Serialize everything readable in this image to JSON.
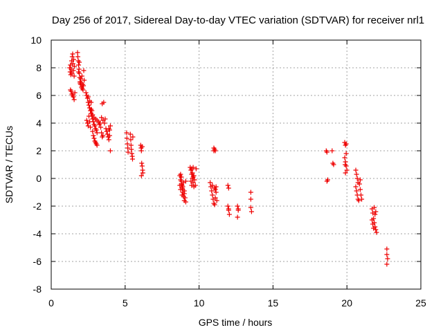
{
  "chart_data": {
    "type": "scatter",
    "title": "Day 256 of 2017, Sidereal Day-to-day VTEC variation (SDTVAR) for receiver nrl1",
    "xlabel": "GPS time / hours",
    "ylabel": "SDTVAR / TECUs",
    "xlim": [
      0,
      25
    ],
    "ylim": [
      -8,
      10
    ],
    "xticks": [
      0,
      5,
      10,
      15,
      20,
      25
    ],
    "yticks": [
      -8,
      -6,
      -4,
      -2,
      0,
      2,
      4,
      6,
      8,
      10
    ],
    "grid": true,
    "marker": "plus",
    "color": "#ee0000",
    "series": [
      {
        "name": "nrl1",
        "points": [
          [
            1.25,
            8.0
          ],
          [
            1.28,
            7.7
          ],
          [
            1.3,
            8.2
          ],
          [
            1.32,
            7.5
          ],
          [
            1.35,
            7.9
          ],
          [
            1.38,
            8.5
          ],
          [
            1.4,
            7.6
          ],
          [
            1.42,
            8.8
          ],
          [
            1.45,
            9.0
          ],
          [
            1.47,
            8.3
          ],
          [
            1.5,
            7.8
          ],
          [
            1.52,
            8.6
          ],
          [
            1.55,
            7.4
          ],
          [
            1.57,
            8.1
          ],
          [
            1.3,
            6.4
          ],
          [
            1.35,
            6.3
          ],
          [
            1.4,
            6.1
          ],
          [
            1.45,
            6.0
          ],
          [
            1.5,
            5.9
          ],
          [
            1.55,
            5.7
          ],
          [
            1.6,
            6.2
          ],
          [
            1.78,
            9.1
          ],
          [
            1.8,
            8.8
          ],
          [
            1.83,
            8.5
          ],
          [
            1.85,
            8.2
          ],
          [
            1.88,
            7.9
          ],
          [
            1.9,
            7.6
          ],
          [
            1.93,
            7.3
          ],
          [
            1.95,
            7.0
          ],
          [
            1.98,
            6.8
          ],
          [
            2.0,
            7.2
          ],
          [
            2.03,
            6.9
          ],
          [
            2.05,
            6.6
          ],
          [
            2.08,
            7.4
          ],
          [
            2.1,
            6.5
          ],
          [
            2.13,
            6.8
          ],
          [
            2.15,
            6.4
          ],
          [
            2.18,
            6.7
          ],
          [
            2.2,
            7.8
          ],
          [
            2.23,
            7.1
          ],
          [
            1.85,
            7.7
          ],
          [
            1.9,
            8.4
          ],
          [
            1.95,
            6.9
          ],
          [
            2.35,
            6.2
          ],
          [
            2.4,
            6.0
          ],
          [
            2.45,
            5.8
          ],
          [
            2.5,
            5.5
          ],
          [
            2.55,
            5.3
          ],
          [
            2.6,
            5.1
          ],
          [
            2.65,
            4.9
          ],
          [
            2.7,
            4.7
          ],
          [
            2.75,
            4.5
          ],
          [
            2.8,
            4.3
          ],
          [
            2.85,
            4.1
          ],
          [
            2.9,
            3.9
          ],
          [
            2.95,
            3.8
          ],
          [
            3.0,
            3.6
          ],
          [
            3.05,
            3.5
          ],
          [
            3.1,
            3.3
          ],
          [
            2.4,
            4.2
          ],
          [
            2.45,
            4.0
          ],
          [
            2.5,
            3.8
          ],
          [
            2.55,
            4.5
          ],
          [
            2.6,
            4.1
          ],
          [
            2.65,
            3.7
          ],
          [
            2.7,
            5.5
          ],
          [
            2.75,
            4.9
          ],
          [
            2.8,
            3.4
          ],
          [
            2.85,
            3.1
          ],
          [
            2.9,
            2.9
          ],
          [
            2.95,
            2.7
          ],
          [
            3.0,
            2.6
          ],
          [
            3.05,
            2.5
          ],
          [
            3.1,
            2.4
          ],
          [
            2.5,
            5.9
          ],
          [
            2.6,
            5.6
          ],
          [
            2.7,
            5.0
          ],
          [
            2.8,
            4.6
          ],
          [
            2.9,
            4.4
          ],
          [
            3.0,
            4.3
          ],
          [
            3.1,
            4.2
          ],
          [
            3.2,
            4.1
          ],
          [
            3.25,
            3.9
          ],
          [
            3.3,
            4.0
          ],
          [
            3.35,
            3.7
          ],
          [
            3.4,
            3.3
          ],
          [
            3.45,
            3.0
          ],
          [
            3.5,
            3.1
          ],
          [
            3.4,
            4.4
          ],
          [
            3.5,
            4.2
          ],
          [
            3.55,
            5.5
          ],
          [
            3.45,
            5.4
          ],
          [
            3.6,
            4.0
          ],
          [
            3.65,
            4.3
          ],
          [
            3.7,
            3.6
          ],
          [
            3.75,
            3.4
          ],
          [
            3.8,
            3.2
          ],
          [
            3.85,
            3.0
          ],
          [
            3.9,
            2.8
          ],
          [
            3.95,
            3.5
          ],
          [
            4.0,
            3.8
          ],
          [
            3.9,
            3.6
          ],
          [
            3.95,
            3.1
          ],
          [
            4.0,
            2.0
          ],
          [
            5.1,
            3.3
          ],
          [
            5.12,
            2.9
          ],
          [
            5.15,
            2.5
          ],
          [
            5.18,
            2.2
          ],
          [
            5.2,
            1.9
          ],
          [
            5.35,
            3.2
          ],
          [
            5.38,
            2.8
          ],
          [
            5.4,
            2.4
          ],
          [
            5.42,
            2.1
          ],
          [
            5.45,
            1.8
          ],
          [
            5.48,
            1.6
          ],
          [
            5.5,
            1.4
          ],
          [
            5.52,
            3.0
          ],
          [
            6.05,
            2.4
          ],
          [
            6.08,
            2.2
          ],
          [
            6.1,
            2.0
          ],
          [
            6.12,
            1.1
          ],
          [
            6.15,
            0.9
          ],
          [
            6.18,
            0.6
          ],
          [
            6.2,
            0.4
          ],
          [
            6.1,
            0.2
          ],
          [
            6.15,
            2.3
          ],
          [
            8.7,
            0.2
          ],
          [
            8.75,
            -0.1
          ],
          [
            8.8,
            -0.4
          ],
          [
            8.85,
            -0.7
          ],
          [
            8.9,
            -1.0
          ],
          [
            8.95,
            -1.3
          ],
          [
            9.0,
            -1.6
          ],
          [
            8.75,
            0.3
          ],
          [
            8.8,
            -0.2
          ],
          [
            8.85,
            -0.5
          ],
          [
            8.9,
            -0.8
          ],
          [
            8.95,
            -0.3
          ],
          [
            9.0,
            -1.1
          ],
          [
            9.05,
            -1.4
          ],
          [
            9.1,
            -1.7
          ],
          [
            8.8,
            0.1
          ],
          [
            8.9,
            -0.6
          ],
          [
            9.0,
            -0.9
          ],
          [
            9.1,
            -0.2
          ],
          [
            8.7,
            -0.5
          ],
          [
            8.75,
            -0.8
          ],
          [
            8.85,
            -1.2
          ],
          [
            9.4,
            0.8
          ],
          [
            9.45,
            0.6
          ],
          [
            9.5,
            0.3
          ],
          [
            9.55,
            0.0
          ],
          [
            9.6,
            -0.3
          ],
          [
            9.65,
            -0.6
          ],
          [
            9.5,
            0.7
          ],
          [
            9.55,
            0.4
          ],
          [
            9.6,
            0.8
          ],
          [
            9.65,
            0.2
          ],
          [
            9.7,
            -0.1
          ],
          [
            9.75,
            -0.5
          ],
          [
            9.8,
            0.7
          ],
          [
            9.45,
            -0.2
          ],
          [
            9.5,
            -0.5
          ],
          [
            9.6,
            0.1
          ],
          [
            10.75,
            -0.3
          ],
          [
            10.8,
            -0.6
          ],
          [
            10.85,
            -0.9
          ],
          [
            10.9,
            -1.2
          ],
          [
            10.95,
            -1.5
          ],
          [
            11.0,
            -1.8
          ],
          [
            11.05,
            -1.9
          ],
          [
            11.1,
            -0.8
          ],
          [
            11.15,
            -0.6
          ],
          [
            11.2,
            -1.6
          ],
          [
            11.05,
            -0.7
          ],
          [
            11.1,
            -1.4
          ],
          [
            11.15,
            -1.0
          ],
          [
            10.9,
            -0.5
          ],
          [
            11.0,
            2.2
          ],
          [
            11.05,
            2.1
          ],
          [
            11.1,
            2.0
          ],
          [
            11.0,
            2.0
          ],
          [
            11.95,
            -0.5
          ],
          [
            12.0,
            -0.7
          ],
          [
            11.95,
            -2.0
          ],
          [
            12.0,
            -2.3
          ],
          [
            12.05,
            -2.6
          ],
          [
            12.0,
            -2.2
          ],
          [
            12.6,
            -2.0
          ],
          [
            12.65,
            -2.3
          ],
          [
            12.6,
            -2.8
          ],
          [
            12.65,
            -2.2
          ],
          [
            13.5,
            -1.0
          ],
          [
            13.5,
            -1.5
          ],
          [
            13.5,
            -2.1
          ],
          [
            13.55,
            -2.4
          ],
          [
            18.6,
            2.0
          ],
          [
            18.65,
            1.9
          ],
          [
            18.7,
            -0.1
          ],
          [
            18.65,
            -0.2
          ],
          [
            19.0,
            2.0
          ],
          [
            19.05,
            1.1
          ],
          [
            19.1,
            1.0
          ],
          [
            19.85,
            2.6
          ],
          [
            19.9,
            2.4
          ],
          [
            19.95,
            1.8
          ],
          [
            19.85,
            1.5
          ],
          [
            19.9,
            1.2
          ],
          [
            19.95,
            0.9
          ],
          [
            20.0,
            0.6
          ],
          [
            19.9,
            0.4
          ],
          [
            19.95,
            2.5
          ],
          [
            19.88,
            1.0
          ],
          [
            20.6,
            0.6
          ],
          [
            20.65,
            0.3
          ],
          [
            20.7,
            0.0
          ],
          [
            20.75,
            -0.3
          ],
          [
            20.6,
            -0.6
          ],
          [
            20.65,
            -0.9
          ],
          [
            20.7,
            -1.2
          ],
          [
            20.75,
            -1.5
          ],
          [
            20.8,
            -1.6
          ],
          [
            20.85,
            -0.4
          ],
          [
            20.9,
            -0.8
          ],
          [
            20.95,
            -1.2
          ],
          [
            21.0,
            -1.5
          ],
          [
            20.9,
            -0.1
          ],
          [
            21.7,
            -2.2
          ],
          [
            21.75,
            -2.5
          ],
          [
            21.8,
            -2.9
          ],
          [
            21.85,
            -3.2
          ],
          [
            21.9,
            -3.5
          ],
          [
            21.95,
            -3.7
          ],
          [
            22.0,
            -3.9
          ],
          [
            21.75,
            -3.3
          ],
          [
            21.85,
            -2.1
          ],
          [
            21.9,
            -2.6
          ],
          [
            21.7,
            -3.0
          ],
          [
            21.8,
            -3.6
          ],
          [
            21.95,
            -2.4
          ],
          [
            22.7,
            -5.1
          ],
          [
            22.7,
            -5.5
          ],
          [
            22.75,
            -5.8
          ],
          [
            22.7,
            -6.2
          ]
        ]
      }
    ]
  }
}
